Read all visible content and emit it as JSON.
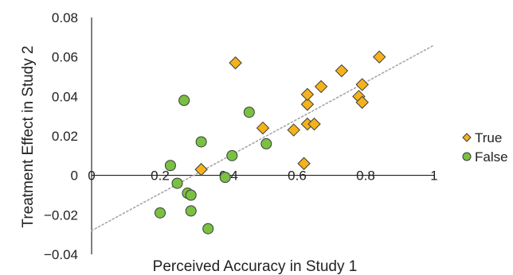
{
  "chart_data": {
    "type": "scatter",
    "title": "",
    "xlabel": "Perceived Accuracy in Study 1",
    "ylabel": "Treatment Effect in Study 2",
    "xlim": [
      0,
      1
    ],
    "ylim": [
      -0.04,
      0.08
    ],
    "x_ticks": [
      "0",
      "0.2",
      "0.4",
      "0.6",
      "0.8",
      "1"
    ],
    "y_ticks": [
      "0.08",
      "0.06",
      "0.04",
      "0.02",
      "0",
      "−0.02",
      "−0.04"
    ],
    "grid": false,
    "legend_position": "right",
    "trendline": {
      "style": "dotted",
      "color": "#a6a6a6",
      "x": [
        0,
        1
      ],
      "y": [
        -0.028,
        0.066
      ]
    },
    "series": [
      {
        "name": "True",
        "marker": "diamond",
        "color": "#f5b21b",
        "points": [
          [
            0.42,
            0.057
          ],
          [
            0.32,
            0.003
          ],
          [
            0.5,
            0.024
          ],
          [
            0.59,
            0.023
          ],
          [
            0.62,
            0.006
          ],
          [
            0.63,
            0.026
          ],
          [
            0.65,
            0.026
          ],
          [
            0.63,
            0.036
          ],
          [
            0.63,
            0.041
          ],
          [
            0.67,
            0.045
          ],
          [
            0.73,
            0.053
          ],
          [
            0.79,
            0.046
          ],
          [
            0.78,
            0.04
          ],
          [
            0.79,
            0.037
          ],
          [
            0.84,
            0.06
          ]
        ]
      },
      {
        "name": "False",
        "marker": "circle",
        "color": "#7ac142",
        "points": [
          [
            0.2,
            -0.019
          ],
          [
            0.23,
            0.005
          ],
          [
            0.25,
            -0.004
          ],
          [
            0.27,
            0.038
          ],
          [
            0.28,
            -0.009
          ],
          [
            0.29,
            -0.01
          ],
          [
            0.29,
            -0.018
          ],
          [
            0.32,
            0.017
          ],
          [
            0.34,
            -0.027
          ],
          [
            0.39,
            -0.001
          ],
          [
            0.41,
            0.01
          ],
          [
            0.46,
            0.032
          ],
          [
            0.51,
            0.016
          ]
        ]
      }
    ]
  }
}
